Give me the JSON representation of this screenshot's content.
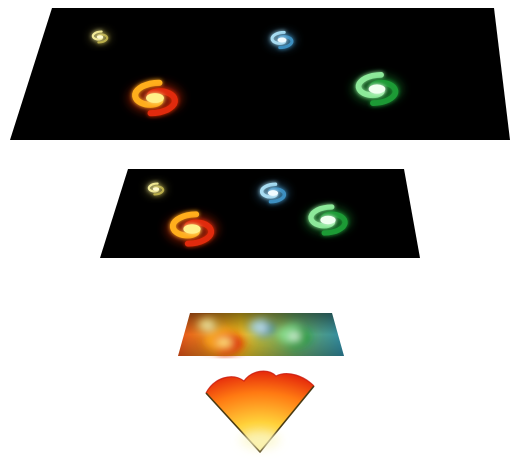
{
  "layers": [
    {
      "name": "top-layer",
      "fill": "#000000",
      "galaxies": [
        {
          "name": "yellow-galaxy",
          "colors": [
            "#fffbd0",
            "#f3ec9a",
            "#b9ad4a"
          ]
        },
        {
          "name": "blue-galaxy",
          "colors": [
            "#f0fbff",
            "#a9ddf2",
            "#3d8fc0"
          ]
        },
        {
          "name": "red-orange-galaxy",
          "colors": [
            "#fff08a",
            "#ffae1c",
            "#e02a08"
          ]
        },
        {
          "name": "green-galaxy",
          "colors": [
            "#effff0",
            "#8de99a",
            "#1e9a36"
          ]
        }
      ]
    },
    {
      "name": "middle-layer",
      "fill": "#000000",
      "galaxies": [
        {
          "name": "yellow-galaxy",
          "colors": [
            "#fffbd0",
            "#f3ec9a",
            "#b9ad4a"
          ]
        },
        {
          "name": "blue-galaxy",
          "colors": [
            "#f0fbff",
            "#a9ddf2",
            "#3d8fc0"
          ]
        },
        {
          "name": "red-orange-galaxy",
          "colors": [
            "#fff08a",
            "#ffae1c",
            "#e02a08"
          ]
        },
        {
          "name": "green-galaxy",
          "colors": [
            "#effff0",
            "#8de99a",
            "#1e9a36"
          ]
        }
      ]
    },
    {
      "name": "bottom-blurred-layer",
      "gradient": [
        "#e8541a",
        "#f0c41f",
        "#6fb06c",
        "#2f8aa4"
      ]
    }
  ],
  "cone": {
    "colors": [
      "#f8f2a6",
      "#ffd23a",
      "#ff7a12",
      "#e01a0a"
    ],
    "rim": "#4a3a12"
  }
}
